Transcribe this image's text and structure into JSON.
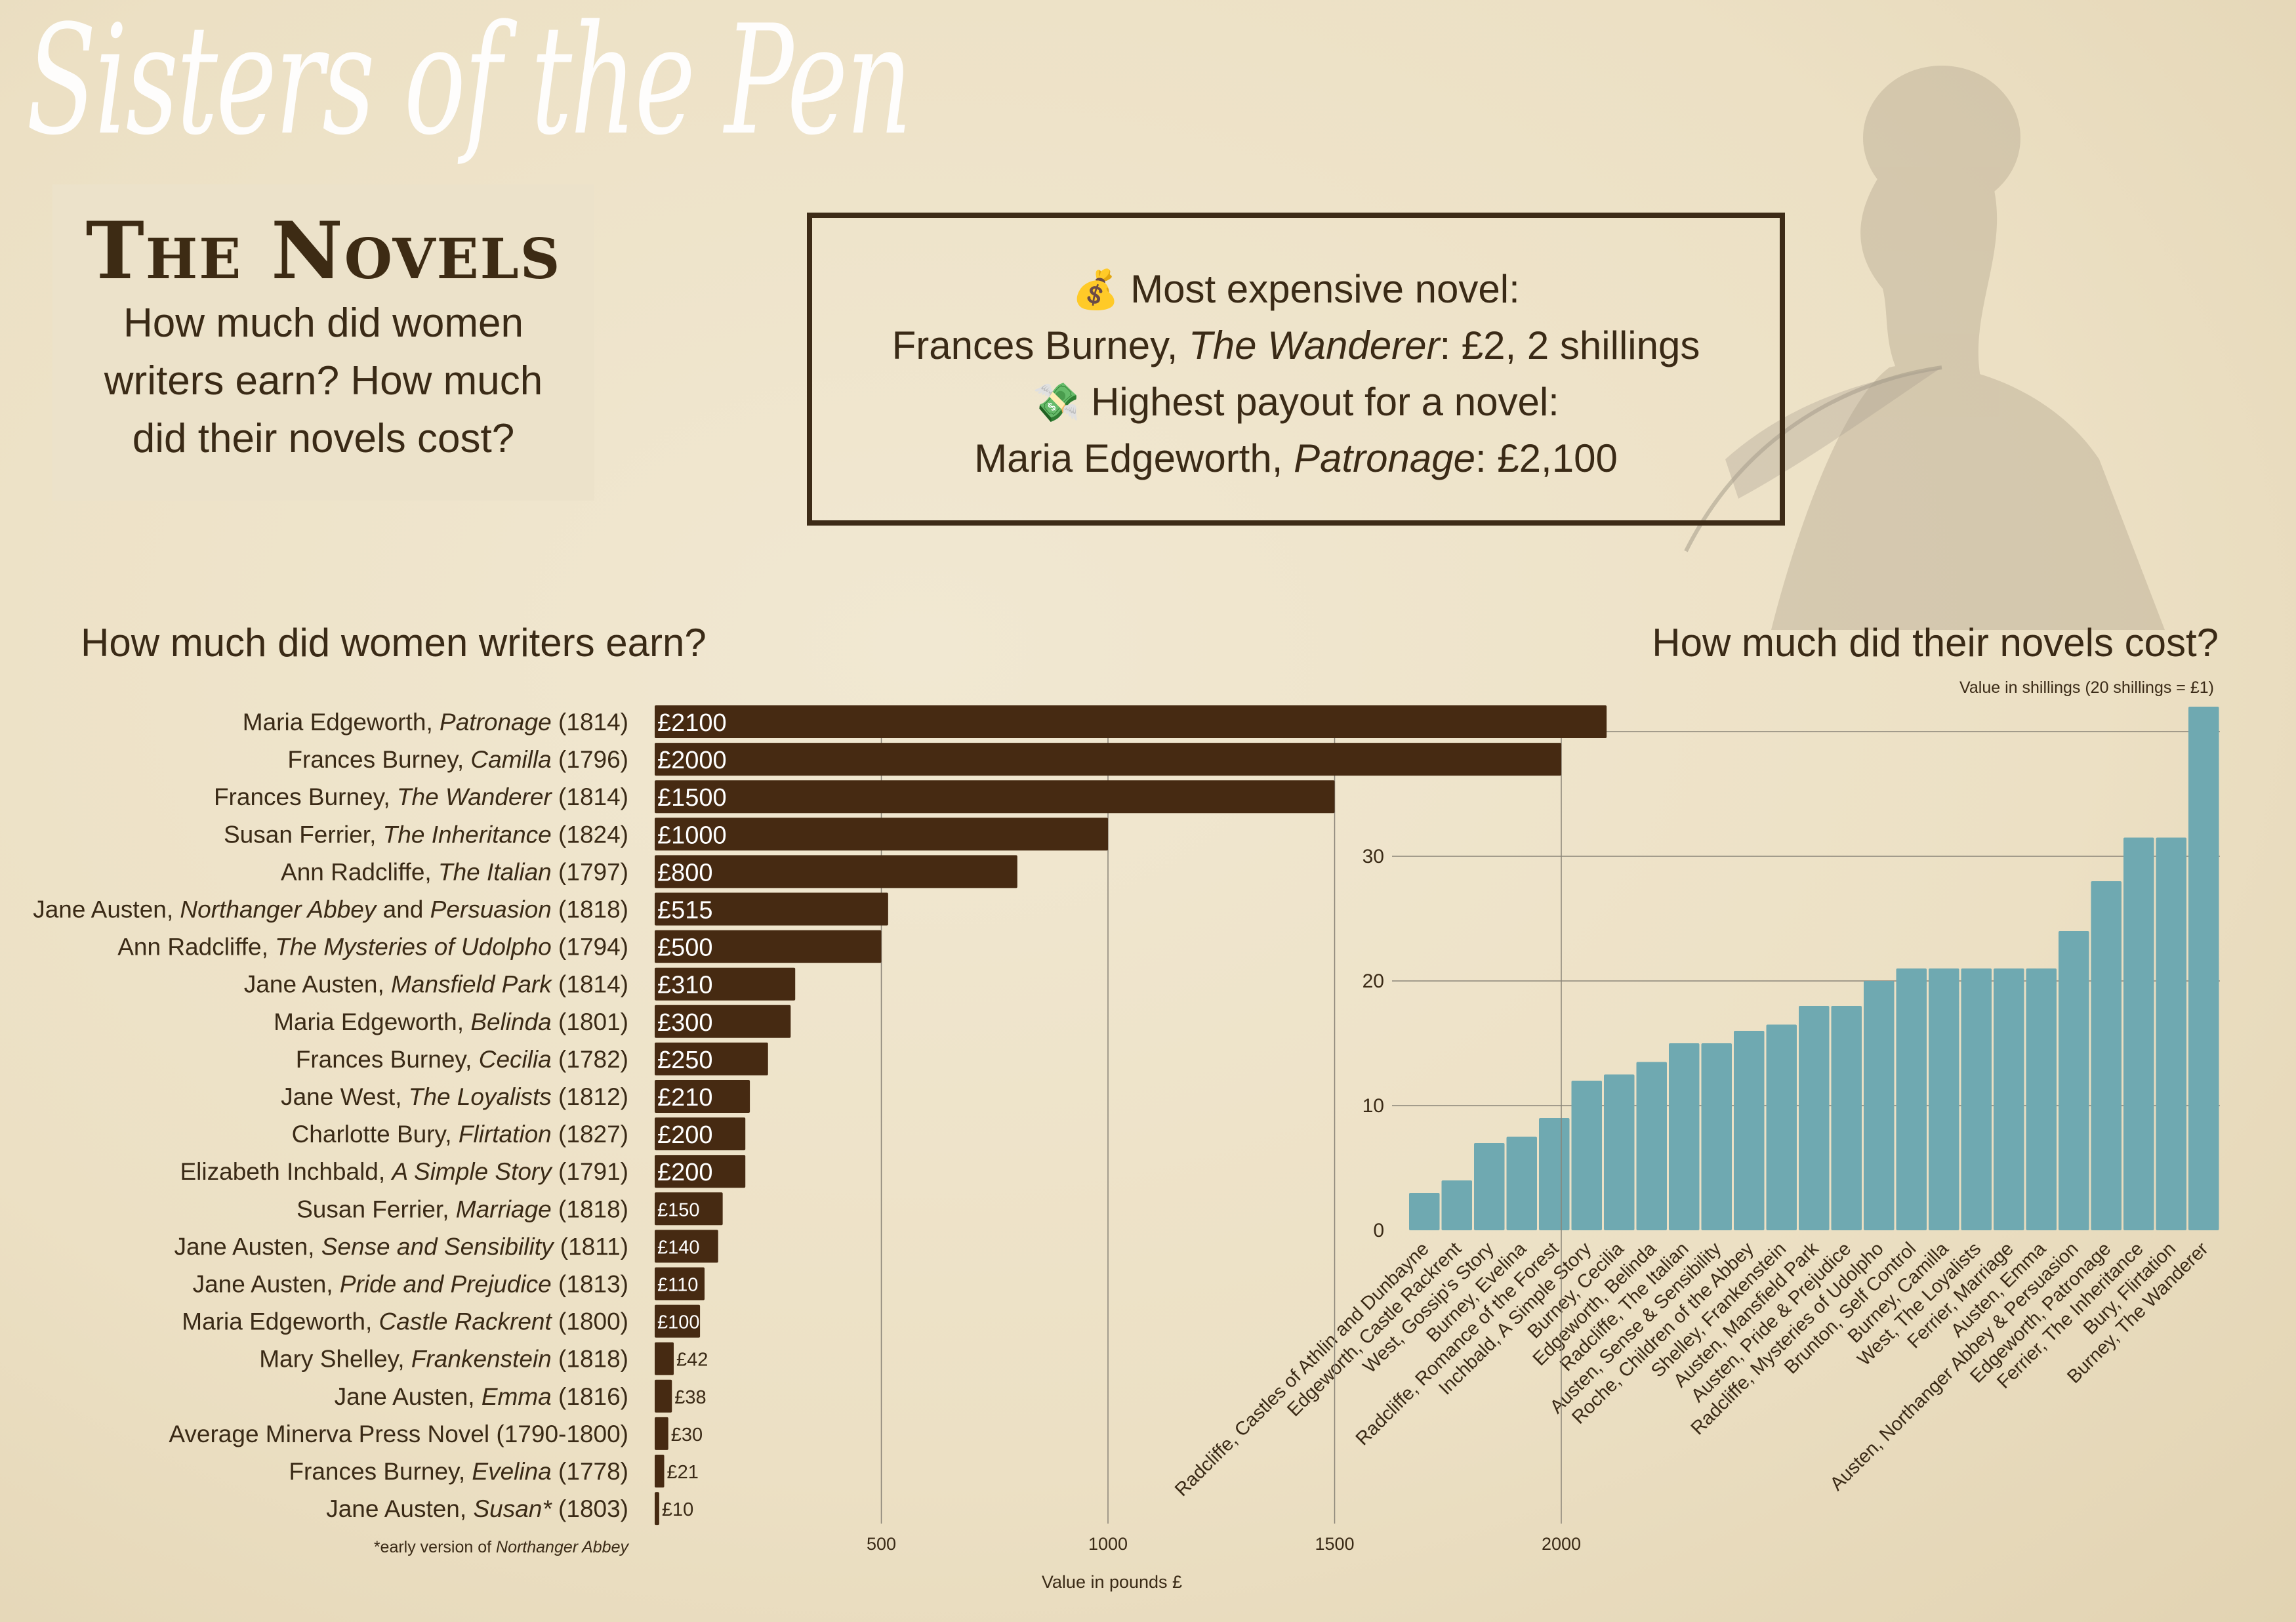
{
  "header": {
    "script_title": "Sisters of the Pen",
    "panel_heading": "The Novels",
    "panel_lines": [
      "How much did women",
      "writers earn? How much",
      "did their novels cost?"
    ]
  },
  "info_box": {
    "expensive_icon": "money-bag-icon",
    "expensive_label": "Most expensive novel:",
    "expensive_author": "Frances Burney, ",
    "expensive_title": "The Wanderer",
    "expensive_value": ": £2, 2 shillings",
    "payout_icon": "money-with-wings-icon",
    "payout_label": "Highest payout for a novel:",
    "payout_author": "Maria Edgeworth, ",
    "payout_title": "Patronage",
    "payout_value": ": £2,100"
  },
  "colors": {
    "earn_bar": "#462a12",
    "cost_bar": "#6fa9b1",
    "grid": "#8a8478",
    "text": "#3a2a16"
  },
  "chart_data": [
    {
      "type": "bar",
      "orientation": "horizontal",
      "title": "How much did women writers earn?",
      "xlabel": "Value in pounds £",
      "xlim": [
        0,
        2100
      ],
      "xticks": [
        "500",
        "1000",
        "1500",
        "2000"
      ],
      "xtick_values": [
        500,
        1000,
        1500,
        2000
      ],
      "footnote_pre": "*early version of ",
      "footnote_title": "Northanger Abbey",
      "currency": "£",
      "rows": [
        {
          "pre": "Maria Edgeworth, ",
          "title": "Patronage",
          "post": " (1814)",
          "value": 2100
        },
        {
          "pre": "Frances Burney, ",
          "title": "Camilla",
          "post": " (1796)",
          "value": 2000
        },
        {
          "pre": "Frances Burney, ",
          "title": "The Wanderer",
          "post": " (1814)",
          "value": 1500
        },
        {
          "pre": "Susan Ferrier, ",
          "title": "The Inheritance",
          "post": " (1824)",
          "value": 1000
        },
        {
          "pre": "Ann Radcliffe, ",
          "title": "The Italian",
          "post": " (1797)",
          "value": 800
        },
        {
          "pre": "Jane Austen, ",
          "title": "Northanger Abbey",
          "mid": " and ",
          "title2": "Persuasion",
          "post": " (1818)",
          "value": 515
        },
        {
          "pre": "Ann Radcliffe, ",
          "title": "The Mysteries of Udolpho",
          "post": " (1794)",
          "value": 500
        },
        {
          "pre": "Jane Austen, ",
          "title": "Mansfield Park",
          "post": " (1814)",
          "value": 310
        },
        {
          "pre": "Maria Edgeworth, ",
          "title": "Belinda",
          "post": " (1801)",
          "value": 300
        },
        {
          "pre": "Frances Burney, ",
          "title": "Cecilia",
          "post": " (1782)",
          "value": 250
        },
        {
          "pre": "Jane West, ",
          "title": "The Loyalists",
          "post": " (1812)",
          "value": 210
        },
        {
          "pre": "Charlotte Bury, ",
          "title": "Flirtation",
          "post": " (1827)",
          "value": 200
        },
        {
          "pre": "Elizabeth Inchbald, ",
          "title": "A Simple Story",
          "post": " (1791)",
          "value": 200
        },
        {
          "pre": "Susan Ferrier, ",
          "title": "Marriage",
          "post": " (1818)",
          "value": 150
        },
        {
          "pre": "Jane Austen, ",
          "title": "Sense and Sensibility",
          "post": " (1811)",
          "value": 140
        },
        {
          "pre": "Jane Austen, ",
          "title": "Pride and Prejudice",
          "post": " (1813)",
          "value": 110
        },
        {
          "pre": "Maria Edgeworth, ",
          "title": "Castle Rackrent",
          "post": " (1800)",
          "value": 100
        },
        {
          "pre": "Mary Shelley, ",
          "title": "Frankenstein",
          "post": " (1818)",
          "value": 42
        },
        {
          "pre": "Jane Austen, ",
          "title": "Emma",
          "post": " (1816)",
          "value": 38
        },
        {
          "pre": "Average Minerva Press Novel (1790-1800)",
          "title": "",
          "post": "",
          "value": 30
        },
        {
          "pre": "Frances Burney, ",
          "title": "Evelina",
          "post": " (1778)",
          "value": 21
        },
        {
          "pre": "Jane Austen, ",
          "title": "Susan*",
          "post": " (1803)",
          "value": 10
        }
      ]
    },
    {
      "type": "bar",
      "orientation": "vertical",
      "title": "How much did their novels cost?",
      "subtitle": "Value in shillings (20 shillings = £1)",
      "ylim": [
        0,
        42
      ],
      "yticks": [
        "0",
        "10",
        "20",
        "30"
      ],
      "ytick_values": [
        0,
        10,
        20,
        30
      ],
      "grid_values": [
        10,
        20,
        30,
        40
      ],
      "categories": [
        "Radcliffe, Castles of Athlin and Dunbayne",
        "Edgeworth, Castle Rackrent",
        "West, Gossip's Story",
        "Burney, Evelina",
        "Radcliffe, Romance of the Forest",
        "Inchbald, A Simple Story",
        "Burney, Cecilia",
        "Edgeworth, Belinda",
        "Radcliffe, The Italian",
        "Austen, Sense & Sensibility",
        "Roche, Children of the Abbey",
        "Shelley, Frankenstein",
        "Austen, Mansfield Park",
        "Austen, Pride & Prejudice",
        "Radcliffe, Mysteries of Udolpho",
        "Brunton, Self Control",
        "Burney, Camilla",
        "West, The Loyalists",
        "Ferrier, Marriage",
        "Austen, Emma",
        "Austen, Northanger Abbey & Persuasion",
        "Edgeworth, Patronage",
        "Ferrier, The Inheritance",
        "Bury, Flirtation",
        "Burney, The Wanderer"
      ],
      "values": [
        3,
        4,
        7,
        7.5,
        9,
        12,
        12.5,
        13.5,
        15,
        15,
        16,
        16.5,
        18,
        18,
        20,
        21,
        21,
        21,
        21,
        21,
        24,
        28,
        31.5,
        31.5,
        42
      ]
    }
  ]
}
